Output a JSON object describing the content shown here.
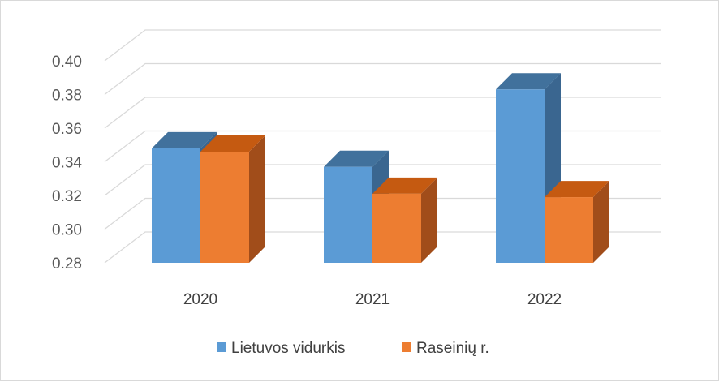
{
  "chart_data": {
    "type": "bar",
    "categories": [
      "2020",
      "2021",
      "2022"
    ],
    "series": [
      {
        "name": "Lietuvos vidurkis",
        "values": [
          0.348,
          0.337,
          0.383
        ],
        "color": "#5b9bd5",
        "top_color": "#41719c",
        "side_color": "#3a6690"
      },
      {
        "name": "Raseinių r.",
        "values": [
          0.346,
          0.321,
          0.319
        ],
        "color": "#ed7d31",
        "top_color": "#c55a11",
        "side_color": "#a14d1a"
      }
    ],
    "yticks": [
      "0.28",
      "0.30",
      "0.32",
      "0.34",
      "0.36",
      "0.38",
      "0.40"
    ],
    "ylim": [
      0.28,
      0.4
    ],
    "grid": true,
    "legend_position": "bottom"
  }
}
